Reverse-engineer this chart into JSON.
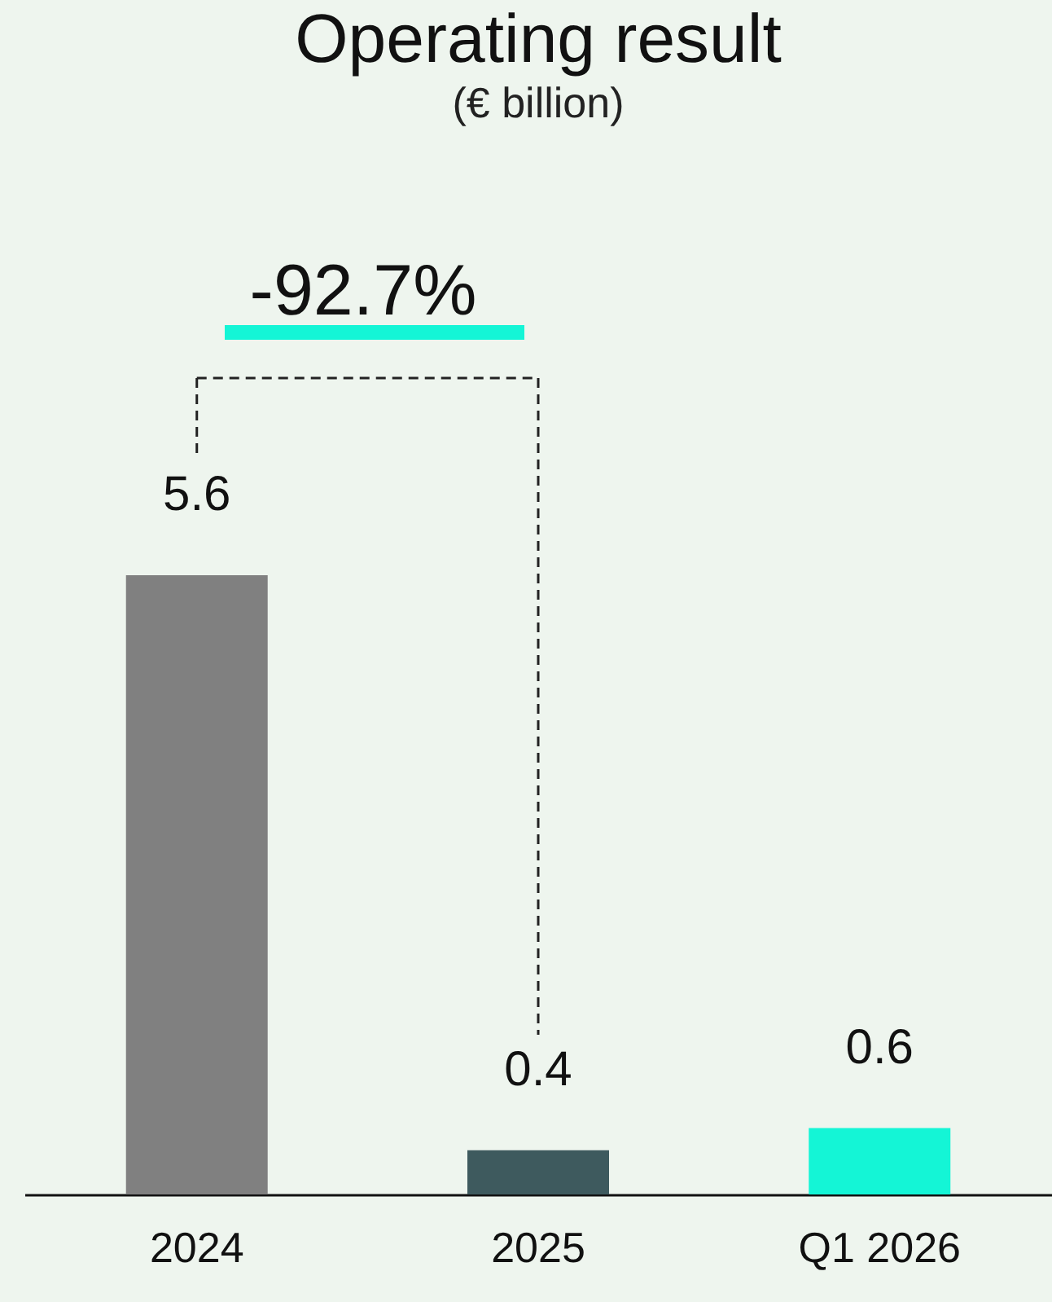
{
  "chart_data": {
    "type": "bar",
    "title": "Operating result",
    "subtitle": "(€ billion)",
    "categories": [
      "2024",
      "2025",
      "Q1 2026"
    ],
    "values": [
      5.6,
      0.4,
      0.6
    ],
    "colors": [
      "#808080",
      "#3e5a5e",
      "#14f5d6"
    ],
    "data_labels": true,
    "annotations": [
      "-92.7%"
    ]
  }
}
